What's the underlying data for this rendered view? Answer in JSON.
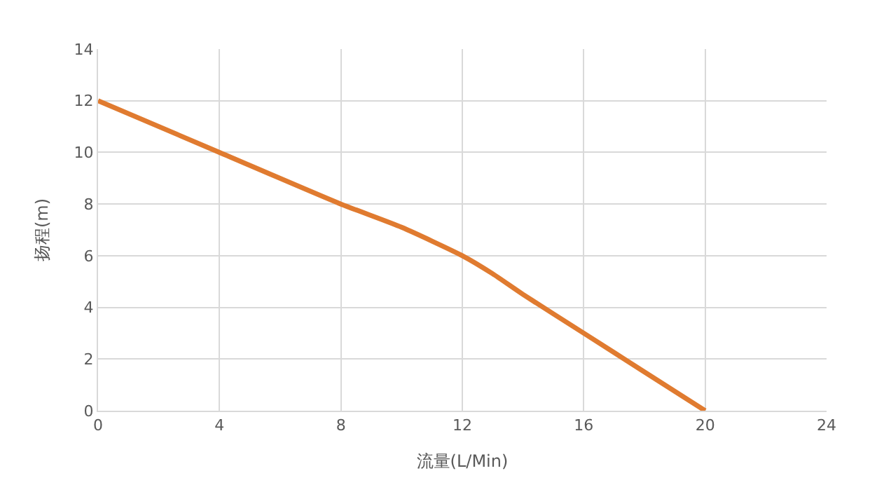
{
  "chart_data": {
    "type": "line",
    "xlabel": "流量(L/Min)",
    "ylabel": "扬程(m)",
    "x": [
      0,
      4,
      8,
      10,
      12,
      13,
      14,
      16,
      18,
      20
    ],
    "series": [
      {
        "color": "#e07b30",
        "values": [
          12,
          10,
          8,
          7.1,
          6,
          5.3,
          4.5,
          3,
          1.5,
          0
        ]
      }
    ],
    "xlim": [
      0,
      24
    ],
    "xticks": [
      0,
      4,
      8,
      12,
      16,
      20,
      24
    ],
    "ylim": [
      0,
      14
    ],
    "yticks": [
      0,
      2,
      4,
      6,
      8,
      10,
      12,
      14
    ],
    "grid": true,
    "legend": false,
    "marker": "none",
    "line_style": "solid"
  }
}
